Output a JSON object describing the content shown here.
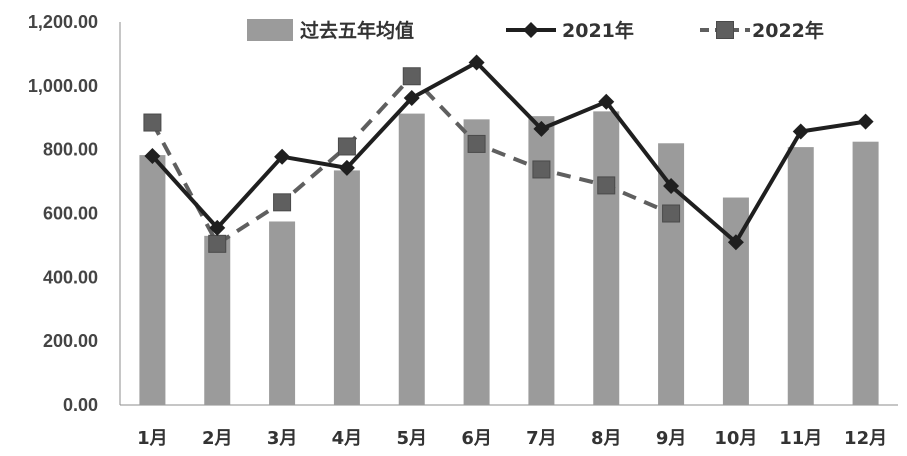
{
  "chart_data": {
    "type": "bar+line",
    "categories": [
      "1月",
      "2月",
      "3月",
      "4月",
      "5月",
      "6月",
      "7月",
      "8月",
      "9月",
      "10月",
      "11月",
      "12月"
    ],
    "series": [
      {
        "name": "过去五年均值",
        "kind": "bar",
        "color": "#9b9b9b",
        "values": [
          783,
          530,
          575,
          735,
          913,
          895,
          905,
          920,
          820,
          650,
          808,
          825
        ]
      },
      {
        "name": "2021年",
        "kind": "line",
        "style": "solid",
        "marker": "diamond",
        "color": "#1f1f1f",
        "values": [
          780,
          555,
          778,
          743,
          962,
          1073,
          865,
          950,
          686,
          510,
          857,
          888
        ]
      },
      {
        "name": "2022年",
        "kind": "line",
        "style": "dashed",
        "marker": "square",
        "color": "#5f5f5f",
        "values": [
          885,
          505,
          635,
          810,
          1030,
          818,
          738,
          688,
          600,
          null,
          null,
          null
        ]
      }
    ],
    "y_ticks": [
      "0.00",
      "200.00",
      "400.00",
      "600.00",
      "800.00",
      "1,000.00",
      "1,200.00"
    ],
    "ylim": [
      0,
      1200
    ],
    "grid": false,
    "legend_position": "top"
  }
}
